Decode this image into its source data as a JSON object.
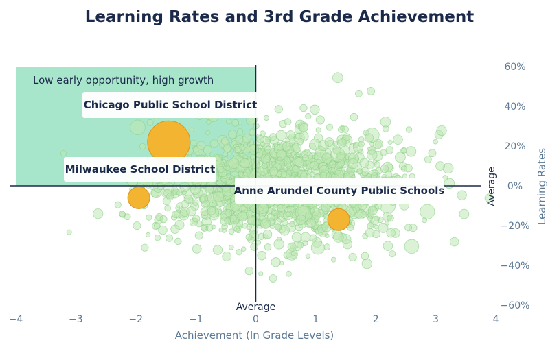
{
  "chart_data": {
    "type": "scatter",
    "title": "Learning Rates and 3rd Grade Achievement",
    "xlabel": "Achievement (In Grade Levels)",
    "ylabel": "Learning Rates",
    "xlim": [
      -4,
      4
    ],
    "ylim": [
      -60,
      60
    ],
    "x_ticks": [
      "−4",
      "−3",
      "−2",
      "−1",
      "0",
      "1",
      "2",
      "3",
      "4"
    ],
    "y_ticks": [
      "60%",
      "40%",
      "20%",
      "0%",
      "−20%",
      "−40%",
      "−60%"
    ],
    "x_average_label": "Average",
    "y_average_label": "Average",
    "quadrant": {
      "label": "Low early opportunity, high growth",
      "x_range": [
        -4,
        0
      ],
      "y_range": [
        0,
        60
      ],
      "color": "#9fe3c6"
    },
    "background_color": "#bfe8b4",
    "highlight_color": "#f2b431",
    "highlighted_districts": [
      {
        "name": "Chicago Public School District",
        "x": -1.45,
        "y": 22
      },
      {
        "name": "Milwaukee School District",
        "x": -1.95,
        "y": -6
      },
      {
        "name": "Anne Arundel County Public Schools",
        "x": 1.38,
        "y": -17
      }
    ],
    "background_points_description": "Thousands of U.S. school districts, densest around achievement −1 to 2 and learning rates −20% to 20%"
  }
}
